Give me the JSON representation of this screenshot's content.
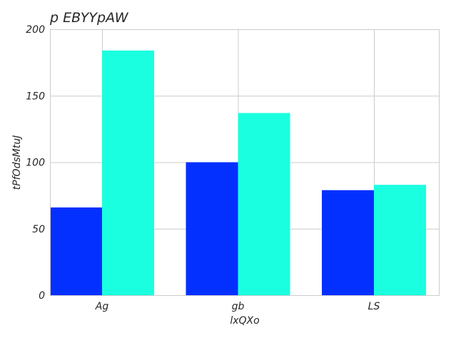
{
  "chart_data": {
    "type": "bar",
    "title": "p EBYYpAW",
    "xlabel": "lxQXo",
    "ylabel": "tPfOdsMtuJ",
    "categories": [
      "Ag",
      "gb",
      "LS"
    ],
    "series": [
      {
        "values": [
          66,
          100,
          79
        ],
        "color": "#0430ff"
      },
      {
        "values": [
          184,
          137,
          83
        ],
        "color": "#1affdf"
      }
    ],
    "ylim": [
      0,
      200
    ],
    "yticks": [
      "0",
      "50",
      "100",
      "150",
      "200"
    ],
    "grid": true
  }
}
